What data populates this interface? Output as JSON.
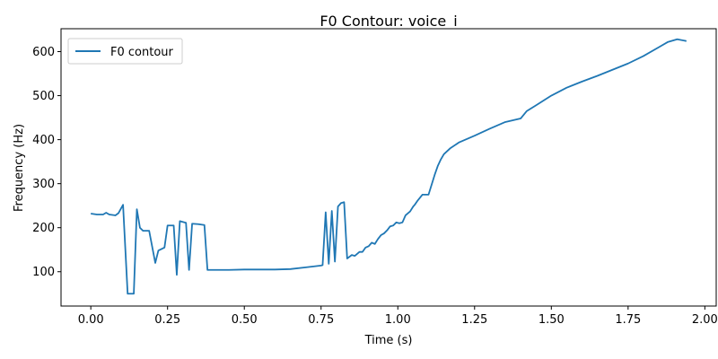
{
  "chart_data": {
    "type": "line",
    "title": "F0 Contour: voice_i",
    "xlabel": "Time (s)",
    "ylabel": "Frequency (Hz)",
    "xlim": [
      -0.097,
      2.037
    ],
    "ylim": [
      22,
      652
    ],
    "xticks": [
      0.0,
      0.25,
      0.5,
      0.75,
      1.0,
      1.25,
      1.5,
      1.75,
      2.0
    ],
    "xtick_labels": [
      "0.00",
      "0.25",
      "0.50",
      "0.75",
      "1.00",
      "1.25",
      "1.50",
      "1.75",
      "2.00"
    ],
    "yticks": [
      100,
      200,
      300,
      400,
      500,
      600
    ],
    "ytick_labels": [
      "100",
      "200",
      "300",
      "400",
      "500",
      "600"
    ],
    "grid": false,
    "legend": "top-left",
    "series": [
      {
        "name": "F0 contour",
        "color": "#1f77b4",
        "x": [
          0.0,
          0.02,
          0.04,
          0.05,
          0.06,
          0.08,
          0.09,
          0.105,
          0.12,
          0.14,
          0.15,
          0.16,
          0.17,
          0.19,
          0.21,
          0.22,
          0.24,
          0.25,
          0.27,
          0.28,
          0.29,
          0.31,
          0.32,
          0.33,
          0.35,
          0.37,
          0.38,
          0.43,
          0.45,
          0.5,
          0.55,
          0.6,
          0.65,
          0.7,
          0.75,
          0.755,
          0.765,
          0.775,
          0.785,
          0.795,
          0.805,
          0.815,
          0.825,
          0.835,
          0.85,
          0.86,
          0.875,
          0.885,
          0.895,
          0.905,
          0.915,
          0.925,
          0.935,
          0.945,
          0.955,
          0.965,
          0.975,
          0.985,
          0.995,
          1.005,
          1.015,
          1.025,
          1.04,
          1.05,
          1.055,
          1.065,
          1.08,
          1.1,
          1.12,
          1.13,
          1.14,
          1.15,
          1.17,
          1.2,
          1.25,
          1.3,
          1.35,
          1.4,
          1.42,
          1.45,
          1.5,
          1.55,
          1.6,
          1.65,
          1.7,
          1.75,
          1.8,
          1.85,
          1.88,
          1.91,
          1.94
        ],
        "y": [
          232,
          230,
          230,
          234,
          230,
          228,
          233,
          252,
          50,
          50,
          242,
          200,
          193,
          193,
          120,
          148,
          155,
          205,
          205,
          93,
          215,
          211,
          104,
          209,
          208,
          206,
          104,
          104,
          104,
          105,
          105,
          105,
          106,
          110,
          114,
          115,
          235,
          118,
          238,
          123,
          248,
          256,
          258,
          130,
          138,
          136,
          145,
          145,
          155,
          158,
          166,
          163,
          174,
          183,
          187,
          194,
          203,
          205,
          212,
          210,
          212,
          228,
          237,
          248,
          252,
          262,
          275,
          275,
          320,
          340,
          355,
          367,
          380,
          394,
          409,
          425,
          440,
          448,
          465,
          478,
          500,
          518,
          532,
          545,
          559,
          573,
          590,
          610,
          622,
          628,
          624
        ]
      }
    ]
  }
}
